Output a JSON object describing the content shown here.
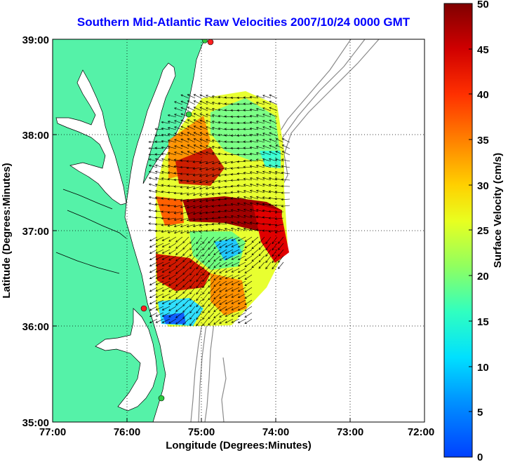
{
  "title": "Southern Mid-Atlantic Raw Velocities 2007/10/24 0000 GMT",
  "x_axis": {
    "label": "Longitude (Degrees:Minutes)",
    "ticks": [
      "77:00",
      "76:00",
      "75:00",
      "74:00",
      "73:00",
      "72:00"
    ]
  },
  "y_axis": {
    "label": "Latitude (Degrees:Minutes)",
    "ticks": [
      "39:00",
      "38:00",
      "37:00",
      "36:00",
      "35:00"
    ]
  },
  "colorbar": {
    "label": "Surface Velocity (cm/s)",
    "ticks": [
      "50",
      "45",
      "40",
      "35",
      "30",
      "25",
      "20",
      "15",
      "10",
      "5",
      "0"
    ],
    "range": [
      0,
      50
    ],
    "colormap": "jet"
  },
  "colors": {
    "land": "#55f2a8",
    "water": "#ffffff",
    "title": "#0000ff",
    "bathymetry": "#888888",
    "site_marker_green": "#2ecc40",
    "site_marker_red": "#ff2020"
  },
  "map_extent": {
    "lon_west": -77.0,
    "lon_east": -72.0,
    "lat_south": 35.0,
    "lat_north": 39.0
  },
  "grid": "dotted"
}
